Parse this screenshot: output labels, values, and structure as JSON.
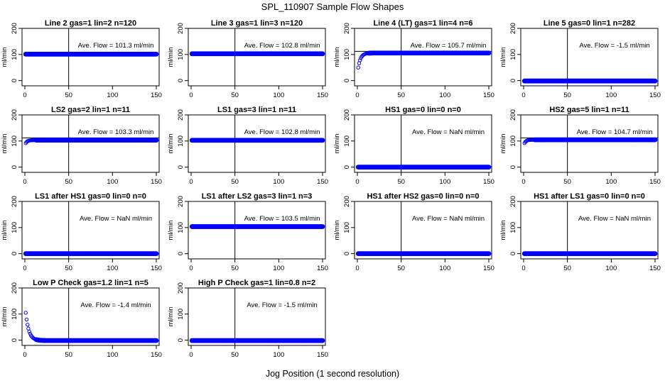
{
  "figure": {
    "title": "SPL_110907  Sample Flow Shapes",
    "xlabel": "Jog Position (1 second resolution)"
  },
  "style": {
    "point_color": "#0000ff",
    "axis_color": "#000000"
  },
  "chart_data": [
    {
      "type": "scatter",
      "title": "Line 2 gas=1 lin=2 n=120",
      "ylabel": "ml/min",
      "xlim": [
        0,
        150
      ],
      "ylim": [
        -20,
        200
      ],
      "xticks": [
        0,
        50,
        100,
        150
      ],
      "yticks": [
        0,
        100,
        200
      ],
      "vline": 50,
      "annotation": "Ave. Flow =  101.3  ml/min",
      "series": [
        {
          "shape": "flat",
          "x_start": 1,
          "x_end": 150,
          "steady": 101.3
        }
      ]
    },
    {
      "type": "scatter",
      "title": "Line 3 gas=1 lin=3 n=120",
      "ylabel": "ml/min",
      "xlim": [
        0,
        150
      ],
      "ylim": [
        -20,
        200
      ],
      "xticks": [
        0,
        50,
        100,
        150
      ],
      "yticks": [
        0,
        100,
        200
      ],
      "vline": 50,
      "annotation": "Ave. Flow =  102.8  ml/min",
      "series": [
        {
          "shape": "flat",
          "x_start": 1,
          "x_end": 150,
          "steady": 102.8
        }
      ]
    },
    {
      "type": "scatter",
      "title": "Line 4 (LT) gas=1 lin=4 n=6",
      "ylabel": "ml/min",
      "xlim": [
        0,
        150
      ],
      "ylim": [
        -20,
        200
      ],
      "xticks": [
        0,
        50,
        100,
        150
      ],
      "yticks": [
        0,
        100,
        200
      ],
      "vline": 50,
      "hline": 112,
      "annotation": "Ave. Flow =  105.7  ml/min",
      "series": [
        {
          "shape": "rise",
          "x_start": 1,
          "x_end": 150,
          "start": 50,
          "steady": 105.7,
          "rate": 0.35
        }
      ]
    },
    {
      "type": "scatter",
      "title": "Line 5 gas=0 lin=1 n=282",
      "ylabel": "ml/min",
      "xlim": [
        0,
        150
      ],
      "ylim": [
        -20,
        200
      ],
      "xticks": [
        0,
        50,
        100,
        150
      ],
      "yticks": [
        0,
        100,
        200
      ],
      "vline": 50,
      "annotation": "Ave. Flow =  -1.5  ml/min",
      "series": [
        {
          "shape": "flat",
          "x_start": 1,
          "x_end": 150,
          "steady": -1.5
        }
      ]
    },
    {
      "type": "scatter",
      "title": "LS2 gas=2 lin=1 n=11",
      "ylabel": "ml/min",
      "xlim": [
        0,
        150
      ],
      "ylim": [
        -20,
        200
      ],
      "xticks": [
        0,
        50,
        100,
        150
      ],
      "yticks": [
        0,
        100,
        200
      ],
      "vline": 50,
      "hline": 112,
      "annotation": "Ave. Flow =  103.3  ml/min",
      "series": [
        {
          "shape": "rise",
          "x_start": 1,
          "x_end": 150,
          "start": 92,
          "steady": 103.3,
          "rate": 0.5
        }
      ]
    },
    {
      "type": "scatter",
      "title": "LS1 gas=3 lin=1 n=11",
      "ylabel": "ml/min",
      "xlim": [
        0,
        150
      ],
      "ylim": [
        -20,
        200
      ],
      "xticks": [
        0,
        50,
        100,
        150
      ],
      "yticks": [
        0,
        100,
        200
      ],
      "vline": 50,
      "annotation": "Ave. Flow =  102.8  ml/min",
      "series": [
        {
          "shape": "flat",
          "x_start": 1,
          "x_end": 150,
          "steady": 102.8
        }
      ]
    },
    {
      "type": "scatter",
      "title": "HS1 gas=0 lin=0 n=0",
      "ylabel": "ml/min",
      "xlim": [
        0,
        150
      ],
      "ylim": [
        -20,
        200
      ],
      "xticks": [
        0,
        50,
        100,
        150
      ],
      "yticks": [
        0,
        100,
        200
      ],
      "vline": 50,
      "annotation": "Ave. Flow =  NaN  ml/min",
      "series": [
        {
          "shape": "flat",
          "x_start": 1,
          "x_end": 150,
          "steady": 0
        }
      ]
    },
    {
      "type": "scatter",
      "title": "HS2 gas=5 lin=1 n=11",
      "ylabel": "ml/min",
      "xlim": [
        0,
        150
      ],
      "ylim": [
        -20,
        200
      ],
      "xticks": [
        0,
        50,
        100,
        150
      ],
      "yticks": [
        0,
        100,
        200
      ],
      "vline": 50,
      "hline": 112,
      "annotation": "Ave. Flow =  104.7  ml/min",
      "series": [
        {
          "shape": "rise",
          "x_start": 1,
          "x_end": 150,
          "start": 92,
          "steady": 104.7,
          "rate": 0.5
        }
      ]
    },
    {
      "type": "scatter",
      "title": "LS1 after HS1 gas=0 lin=0 n=0",
      "ylabel": "ml/min",
      "xlim": [
        0,
        150
      ],
      "ylim": [
        -20,
        200
      ],
      "xticks": [
        0,
        50,
        100,
        150
      ],
      "yticks": [
        0,
        100,
        200
      ],
      "vline": 50,
      "annotation": "Ave. Flow =  NaN  ml/min",
      "series": [
        {
          "shape": "flat",
          "x_start": 1,
          "x_end": 150,
          "steady": 0
        }
      ]
    },
    {
      "type": "scatter",
      "title": "LS1 after LS2 gas=3 lin=1 n=3",
      "ylabel": "ml/min",
      "xlim": [
        0,
        150
      ],
      "ylim": [
        -20,
        200
      ],
      "xticks": [
        0,
        50,
        100,
        150
      ],
      "yticks": [
        0,
        100,
        200
      ],
      "vline": 50,
      "annotation": "Ave. Flow =  103.5  ml/min",
      "series": [
        {
          "shape": "flat",
          "x_start": 1,
          "x_end": 150,
          "steady": 103.5
        }
      ]
    },
    {
      "type": "scatter",
      "title": "HS1 after HS2 gas=0 lin=0 n=0",
      "ylabel": "ml/min",
      "xlim": [
        0,
        150
      ],
      "ylim": [
        -20,
        200
      ],
      "xticks": [
        0,
        50,
        100,
        150
      ],
      "yticks": [
        0,
        100,
        200
      ],
      "vline": 50,
      "annotation": "Ave. Flow =  NaN  ml/min",
      "series": [
        {
          "shape": "flat",
          "x_start": 1,
          "x_end": 150,
          "steady": 0
        }
      ]
    },
    {
      "type": "scatter",
      "title": "HS1 after LS1 gas=0 lin=0 n=0",
      "ylabel": "ml/min",
      "xlim": [
        0,
        150
      ],
      "ylim": [
        -20,
        200
      ],
      "xticks": [
        0,
        50,
        100,
        150
      ],
      "yticks": [
        0,
        100,
        200
      ],
      "vline": 50,
      "annotation": "Ave. Flow =  NaN  ml/min",
      "series": [
        {
          "shape": "flat",
          "x_start": 1,
          "x_end": 150,
          "steady": 0
        }
      ]
    },
    {
      "type": "scatter",
      "title": "Low P Check gas=1.2 lin=1 n=5",
      "ylabel": "ml/min",
      "xlim": [
        0,
        150
      ],
      "ylim": [
        -20,
        200
      ],
      "xticks": [
        0,
        50,
        100,
        150
      ],
      "yticks": [
        0,
        100,
        200
      ],
      "vline": 50,
      "annotation": "Ave. Flow =  -1.4  ml/min",
      "series": [
        {
          "shape": "decay",
          "x_start": 1,
          "x_end": 150,
          "start": 105,
          "steady": -1.4,
          "rate": 0.28
        }
      ]
    },
    {
      "type": "scatter",
      "title": "High P Check gas=1 lin=0.8 n=2",
      "ylabel": "ml/min",
      "xlim": [
        0,
        150
      ],
      "ylim": [
        -20,
        200
      ],
      "xticks": [
        0,
        50,
        100,
        150
      ],
      "yticks": [
        0,
        100,
        200
      ],
      "vline": 50,
      "annotation": "Ave. Flow =  -1.5  ml/min",
      "series": [
        {
          "shape": "flat",
          "x_start": 1,
          "x_end": 150,
          "steady": -1.5
        }
      ]
    }
  ]
}
